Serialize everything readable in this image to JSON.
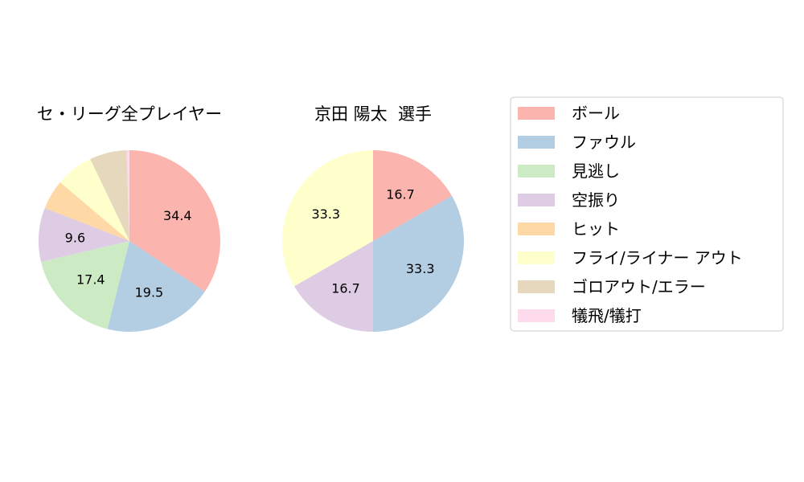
{
  "chart_data": [
    {
      "type": "pie",
      "title": "セ・リーグ全プレイヤー",
      "categories": [
        "ボール",
        "ファウル",
        "見逃し",
        "空振り",
        "ヒット",
        "フライ/ライナー アウト",
        "ゴロアウト/エラー",
        "犠飛/犠打"
      ],
      "values": [
        34.4,
        19.5,
        17.4,
        9.6,
        5.3,
        6.7,
        6.6,
        0.5
      ],
      "data_labels": [
        "34.4",
        "19.5",
        "17.4",
        "9.6",
        "",
        "",
        "",
        ""
      ]
    },
    {
      "type": "pie",
      "title": "京田 陽太  選手",
      "categories": [
        "ボール",
        "ファウル",
        "空振り",
        "フライ/ライナー アウト"
      ],
      "values": [
        16.7,
        33.3,
        16.7,
        33.3
      ],
      "data_labels": [
        "16.7",
        "33.3",
        "16.7",
        "33.3"
      ]
    }
  ],
  "legend": {
    "placement": "right",
    "entries": [
      {
        "label": "ボール",
        "color": "#fbb4ae"
      },
      {
        "label": "ファウル",
        "color": "#b3cde3"
      },
      {
        "label": "見逃し",
        "color": "#ccebc5"
      },
      {
        "label": "空振り",
        "color": "#decbe4"
      },
      {
        "label": "ヒット",
        "color": "#fed9a6"
      },
      {
        "label": "フライ/ライナー アウト",
        "color": "#ffffcc"
      },
      {
        "label": "ゴロアウト/エラー",
        "color": "#e5d8bd"
      },
      {
        "label": "犠飛/犠打",
        "color": "#fddaec"
      }
    ]
  }
}
